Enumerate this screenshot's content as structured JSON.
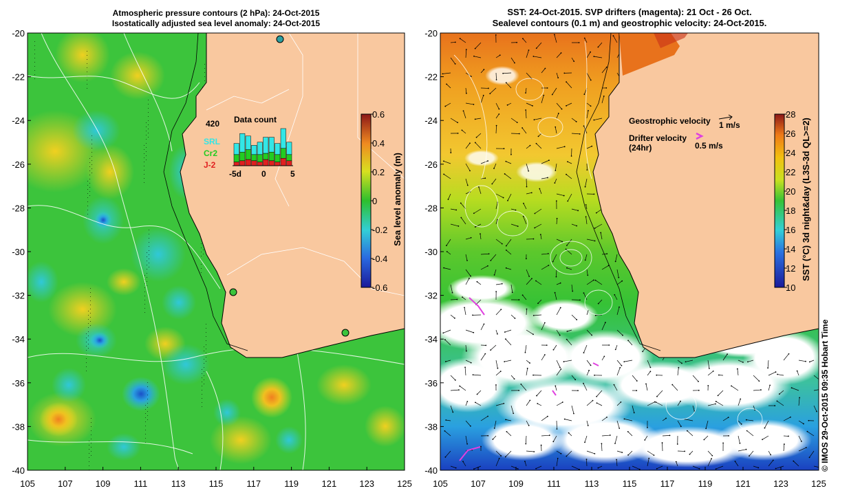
{
  "left_panel": {
    "title_line1": "Atmospheric pressure contours (2 hPa): 24-Oct-2015",
    "title_line2": "Isostatically adjusted sea level anomaly: 24-Oct-2015",
    "colorbar": {
      "label": "Sea level anomaly (m)",
      "ticks": [
        "0.6",
        "0.4",
        "0.2",
        "0",
        "-0.2",
        "-0.4",
        "-0.6"
      ],
      "range": [
        -0.6,
        0.6
      ]
    },
    "inset": {
      "title": "Data count",
      "max_label": "420",
      "legend": [
        {
          "label": "SRL",
          "color": "#33e6e6"
        },
        {
          "label": "Cr2",
          "color": "#22cc22"
        },
        {
          "label": "J-2",
          "color": "#e02020"
        }
      ],
      "x_ticks": [
        "-5d",
        "0",
        "5"
      ]
    }
  },
  "right_panel": {
    "title_line1": "SST: 24-Oct-2015. SVP drifters (magenta): 21 Oct - 26 Oct.",
    "title_line2": "Sealevel contours (0.1 m) and geostrophic velocity: 24-Oct-2015.",
    "colorbar": {
      "label": "SST (°C) 3d night&day (L3S-3d QL>=2)",
      "ticks": [
        "28",
        "26",
        "24",
        "22",
        "20",
        "18",
        "16",
        "14",
        "12",
        "10"
      ],
      "range": [
        10,
        28
      ]
    },
    "legend": {
      "geo_label": "Geostrophic velocity",
      "geo_scale": "1 m/s",
      "drifter_label": "Drifter velocity",
      "drifter_sub": "(24hr)",
      "drifter_scale": "0.5 m/s"
    }
  },
  "axes": {
    "lat_ticks": [
      "-20",
      "-22",
      "-24",
      "-26",
      "-28",
      "-30",
      "-32",
      "-34",
      "-36",
      "-38",
      "-40"
    ],
    "lon_ticks": [
      "105",
      "107",
      "109",
      "111",
      "113",
      "115",
      "117",
      "119",
      "121",
      "123",
      "125"
    ],
    "lat_range": [
      -40,
      -20
    ],
    "lon_range": [
      105,
      125
    ]
  },
  "credit": "© IMOS 29-Oct-2015 09:35 Hobart Time",
  "colors": {
    "land": "#f9c89f",
    "ocean_left": "#3cc43c",
    "accent_magenta": "#e040e0"
  }
}
